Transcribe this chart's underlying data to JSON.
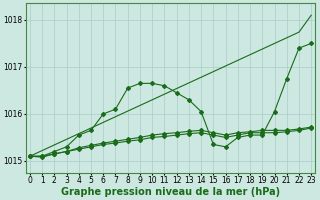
{
  "title": "Graphe pression niveau de la mer (hPa)",
  "bg_color": "#cce8e0",
  "grid_color": "#aacccc",
  "line_color": "#1a6b1a",
  "x": [
    0,
    1,
    2,
    3,
    4,
    5,
    6,
    7,
    8,
    9,
    10,
    11,
    12,
    13,
    14,
    15,
    16,
    17,
    18,
    19,
    20,
    21,
    22,
    23
  ],
  "series_straight": [
    1015.1,
    1015.22,
    1015.34,
    1015.46,
    1015.58,
    1015.7,
    1015.82,
    1015.94,
    1016.06,
    1016.18,
    1016.3,
    1016.42,
    1016.54,
    1016.66,
    1016.78,
    1016.9,
    1017.02,
    1017.14,
    1017.26,
    1017.38,
    1017.5,
    1017.62,
    1017.74,
    1018.1
  ],
  "series_peaked": [
    1015.1,
    1015.1,
    1015.2,
    1015.3,
    1015.55,
    1015.65,
    1016.0,
    1016.1,
    1016.55,
    1016.65,
    1016.65,
    1016.6,
    1016.45,
    1016.3,
    1016.05,
    1015.35,
    1015.3,
    1015.5,
    1015.55,
    1015.55,
    1016.05,
    1016.75,
    1017.4,
    1017.5
  ],
  "series_flat1": [
    1015.1,
    1015.1,
    1015.15,
    1015.2,
    1015.25,
    1015.3,
    1015.35,
    1015.38,
    1015.42,
    1015.45,
    1015.5,
    1015.52,
    1015.55,
    1015.58,
    1015.6,
    1015.55,
    1015.5,
    1015.55,
    1015.6,
    1015.6,
    1015.6,
    1015.62,
    1015.65,
    1015.7
  ],
  "series_flat2": [
    1015.1,
    1015.08,
    1015.15,
    1015.2,
    1015.28,
    1015.33,
    1015.38,
    1015.42,
    1015.46,
    1015.5,
    1015.55,
    1015.58,
    1015.6,
    1015.63,
    1015.65,
    1015.6,
    1015.55,
    1015.6,
    1015.62,
    1015.65,
    1015.65,
    1015.65,
    1015.68,
    1015.72
  ],
  "ylim": [
    1014.75,
    1018.35
  ],
  "yticks": [
    1015,
    1016,
    1017,
    1018
  ],
  "xticks": [
    0,
    1,
    2,
    3,
    4,
    5,
    6,
    7,
    8,
    9,
    10,
    11,
    12,
    13,
    14,
    15,
    16,
    17,
    18,
    19,
    20,
    21,
    22,
    23
  ],
  "tick_fontsize": 5.5,
  "label_fontsize": 7.0,
  "marker": "D",
  "markersize": 2.0,
  "linewidth": 0.8
}
